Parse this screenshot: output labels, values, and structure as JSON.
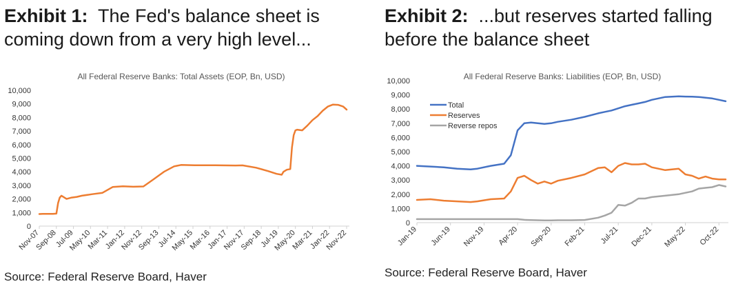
{
  "exhibit1": {
    "label": "Exhibit 1:",
    "heading_line1": "The Fed's balance sheet is",
    "heading_line2": "coming down from a very high level...",
    "source": "Source: Federal Reserve Board, Haver",
    "colors": {
      "line": "#ED7D31"
    }
  },
  "exhibit2": {
    "label": "Exhibit 2:",
    "heading_line1": "...but reserves started falling",
    "heading_line2": "before the balance sheet",
    "source": "Source: Federal Reserve Board, Haver",
    "colors": {
      "total": "#4472C4",
      "reserves": "#ED7D31",
      "reverse_repos": "#A5A5A5"
    }
  },
  "chart_data": [
    {
      "type": "line",
      "title": "All Federal Reserve Banks: Total Assets (EOP, Bn, USD)",
      "ylim": [
        0,
        10000
      ],
      "yticks": [
        "0",
        "1,000",
        "2,000",
        "3,000",
        "4,000",
        "5,000",
        "6,000",
        "7,000",
        "8,000",
        "9,000",
        "10,000"
      ],
      "x_tick_labels": [
        "Nov-07",
        "Sep-08",
        "Jul-09",
        "May-10",
        "Mar-11",
        "Jan-12",
        "Nov-12",
        "Sep-13",
        "Jul-14",
        "May-15",
        "Mar-16",
        "Jan-17",
        "Nov-17",
        "Sep-18",
        "Jul-19",
        "May-20",
        "Mar-21",
        "Jan-22",
        "Nov-22"
      ],
      "legend": "none",
      "grid": false,
      "series": [
        {
          "x": [
            "2007-11",
            "2008-01",
            "2008-04",
            "2008-07",
            "2008-09",
            "2008-10",
            "2008-11",
            "2008-12",
            "2009-03",
            "2009-06",
            "2009-09",
            "2009-12",
            "2010-06",
            "2010-12",
            "2011-06",
            "2011-12",
            "2012-06",
            "2012-12",
            "2013-06",
            "2013-12",
            "2014-06",
            "2014-10",
            "2015-06",
            "2016-06",
            "2017-06",
            "2017-10",
            "2018-06",
            "2019-01",
            "2019-06",
            "2019-09",
            "2019-10",
            "2019-12",
            "2020-02",
            "2020-03",
            "2020-04",
            "2020-05",
            "2020-06",
            "2020-09",
            "2020-12",
            "2021-03",
            "2021-06",
            "2021-09",
            "2021-12",
            "2022-03",
            "2022-06",
            "2022-09",
            "2022-11"
          ],
          "values": [
            890,
            900,
            900,
            905,
            920,
            1700,
            2100,
            2240,
            2000,
            2100,
            2150,
            2240,
            2350,
            2450,
            2880,
            2930,
            2900,
            2920,
            3450,
            4000,
            4400,
            4500,
            4480,
            4480,
            4460,
            4470,
            4300,
            4050,
            3850,
            3780,
            4000,
            4150,
            4200,
            5800,
            6700,
            7050,
            7100,
            7050,
            7400,
            7800,
            8100,
            8500,
            8800,
            8950,
            8930,
            8800,
            8580
          ]
        }
      ]
    },
    {
      "type": "line",
      "title": "All Federal Reserve Banks: Liabilities (EOP, Bn, USD)",
      "ylim": [
        0,
        10000
      ],
      "yticks": [
        "0",
        "1,000",
        "2,000",
        "3,000",
        "4,000",
        "5,000",
        "6,000",
        "7,000",
        "8,000",
        "9,000",
        "10,000"
      ],
      "x_tick_labels": [
        "Jan-19",
        "Jun-19",
        "Nov-19",
        "Apr-20",
        "Sep-20",
        "Feb-21",
        "Jul-21",
        "Dec-21",
        "May-22",
        "Oct-22"
      ],
      "legend": "top-left",
      "grid": false,
      "x": [
        "2019-01",
        "2019-03",
        "2019-05",
        "2019-07",
        "2019-09",
        "2019-10",
        "2019-12",
        "2020-02",
        "2020-03",
        "2020-04",
        "2020-05",
        "2020-06",
        "2020-07",
        "2020-08",
        "2020-09",
        "2020-10",
        "2020-12",
        "2021-02",
        "2021-04",
        "2021-05",
        "2021-06",
        "2021-07",
        "2021-08",
        "2021-09",
        "2021-10",
        "2021-11",
        "2021-12",
        "2022-02",
        "2022-04",
        "2022-05",
        "2022-06",
        "2022-07",
        "2022-08",
        "2022-09",
        "2022-10",
        "2022-11"
      ],
      "series": [
        {
          "name": "Total",
          "values": [
            4000,
            3950,
            3900,
            3800,
            3750,
            3800,
            4000,
            4150,
            4750,
            6500,
            7000,
            7050,
            7000,
            6950,
            7000,
            7100,
            7250,
            7450,
            7700,
            7800,
            7900,
            8050,
            8200,
            8300,
            8400,
            8500,
            8650,
            8850,
            8900,
            8880,
            8870,
            8850,
            8800,
            8750,
            8650,
            8550
          ]
        },
        {
          "name": "Reserves",
          "values": [
            1600,
            1650,
            1550,
            1500,
            1450,
            1500,
            1650,
            1700,
            2200,
            3150,
            3300,
            3000,
            2750,
            2900,
            2750,
            2950,
            3150,
            3400,
            3850,
            3900,
            3550,
            4000,
            4200,
            4100,
            4100,
            4150,
            3900,
            3700,
            3800,
            3400,
            3300,
            3100,
            3250,
            3100,
            3050,
            3050
          ]
        },
        {
          "name": "Reverse repos",
          "values": [
            250,
            250,
            250,
            250,
            250,
            250,
            250,
            250,
            250,
            250,
            200,
            180,
            170,
            160,
            160,
            170,
            170,
            190,
            350,
            500,
            700,
            1250,
            1200,
            1400,
            1700,
            1700,
            1800,
            1900,
            2000,
            2100,
            2200,
            2400,
            2450,
            2500,
            2650,
            2550
          ]
        }
      ]
    }
  ]
}
